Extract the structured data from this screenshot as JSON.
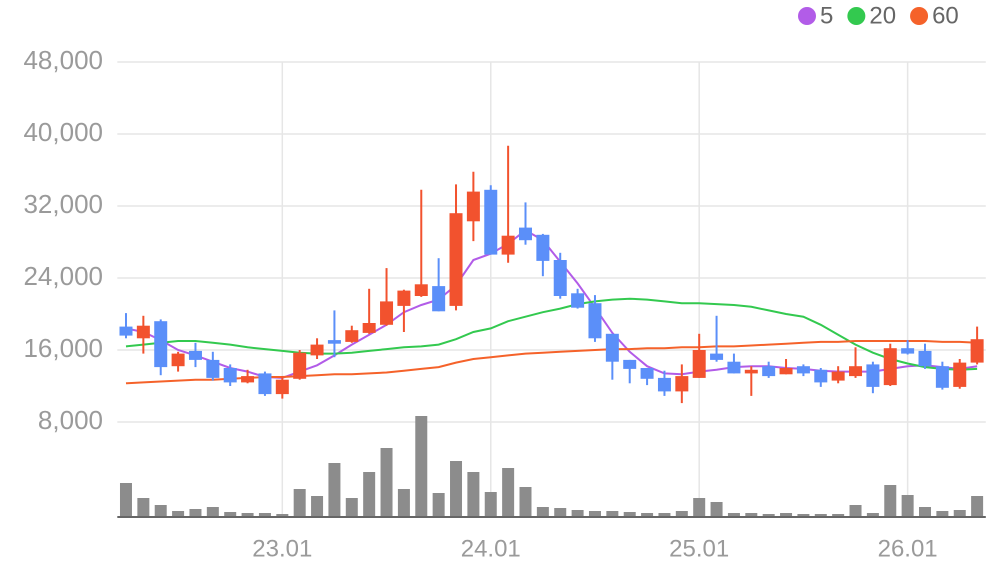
{
  "chart_data": {
    "type": "candlestick",
    "categories": [
      null,
      null,
      null,
      null,
      null,
      null,
      null,
      null,
      null,
      "23.01",
      null,
      null,
      null,
      null,
      null,
      null,
      null,
      null,
      null,
      null,
      null,
      "24.01",
      null,
      null,
      null,
      null,
      null,
      null,
      null,
      null,
      null,
      null,
      null,
      "25.01",
      null,
      null,
      null,
      null,
      null,
      null,
      null,
      null,
      null,
      null,
      null,
      "26.01",
      null,
      null,
      null,
      null
    ],
    "open": [
      18600,
      17300,
      19200,
      14200,
      15900,
      14900,
      14000,
      12400,
      13400,
      11100,
      12800,
      15400,
      17100,
      16900,
      17900,
      18800,
      20900,
      22000,
      23100,
      20900,
      30300,
      33800,
      26600,
      29600,
      28800,
      26000,
      22300,
      21200,
      17800,
      14900,
      14000,
      12900,
      11400,
      12900,
      15600,
      14700,
      13400,
      14200,
      13300,
      14200,
      13800,
      12600,
      13100,
      14400,
      12100,
      16200,
      15900,
      14200,
      11900,
      14600
    ],
    "high": [
      20100,
      19800,
      19400,
      15800,
      16800,
      15800,
      14400,
      13800,
      13600,
      13100,
      16000,
      17300,
      20400,
      18700,
      22800,
      25100,
      22700,
      33800,
      26200,
      34400,
      35800,
      34300,
      38700,
      32400,
      28900,
      26800,
      22800,
      22100,
      17800,
      14900,
      14000,
      13700,
      14400,
      17800,
      19800,
      15600,
      14200,
      14700,
      15000,
      14400,
      14000,
      14200,
      16300,
      14700,
      16700,
      17100,
      16700,
      14700,
      15000,
      18600
    ],
    "low": [
      17300,
      15600,
      13200,
      13600,
      14100,
      12600,
      12000,
      12300,
      10900,
      10600,
      12700,
      15000,
      15200,
      16800,
      17800,
      18700,
      18000,
      21900,
      20300,
      20400,
      28100,
      26600,
      25700,
      27700,
      24200,
      21700,
      20600,
      16900,
      12700,
      12300,
      12100,
      10900,
      10100,
      12900,
      14700,
      13400,
      10900,
      12900,
      13300,
      13100,
      11900,
      12300,
      12900,
      11200,
      12000,
      15500,
      13900,
      11600,
      11700,
      14400
    ],
    "close": [
      17600,
      18700,
      14100,
      15600,
      14900,
      12900,
      12400,
      13100,
      11100,
      12700,
      15700,
      16600,
      16700,
      18200,
      19000,
      21400,
      22600,
      23300,
      20300,
      31200,
      33600,
      26600,
      28700,
      28200,
      25900,
      22000,
      20700,
      17300,
      14700,
      13900,
      12800,
      11400,
      13100,
      16000,
      14900,
      13400,
      13800,
      13100,
      14000,
      13400,
      12400,
      13600,
      14200,
      11900,
      16200,
      15600,
      14200,
      11800,
      14600,
      17200
    ],
    "up_color": "#f2522e",
    "down_color": "#5b8ff9",
    "series": [
      {
        "name": "5",
        "color": "#b25ce8",
        "values": [
          18400,
          18000,
          17100,
          16000,
          15400,
          14700,
          14000,
          13600,
          13000,
          12900,
          13600,
          14300,
          15400,
          16600,
          17700,
          18800,
          20200,
          21000,
          21600,
          23200,
          26000,
          26700,
          27800,
          29300,
          28200,
          25800,
          23400,
          20700,
          17900,
          15800,
          14200,
          13400,
          13300,
          13600,
          13800,
          14100,
          14200,
          14200,
          14000,
          13900,
          13700,
          13600,
          13600,
          13600,
          13900,
          14200,
          14300,
          14100,
          13900,
          14200
        ]
      },
      {
        "name": "20",
        "color": "#33c94f",
        "values": [
          16400,
          16600,
          16800,
          17000,
          17000,
          16800,
          16600,
          16300,
          16100,
          15900,
          15700,
          15600,
          15600,
          15700,
          15900,
          16100,
          16300,
          16400,
          16600,
          17200,
          18000,
          18400,
          19200,
          19700,
          20200,
          20600,
          21100,
          21400,
          21600,
          21700,
          21600,
          21400,
          21200,
          21200,
          21100,
          21000,
          20800,
          20400,
          20000,
          19700,
          18800,
          17700,
          16600,
          15700,
          15000,
          14500,
          14100,
          13900,
          13800,
          13900
        ]
      },
      {
        "name": "60",
        "color": "#f5622a",
        "values": [
          12300,
          12400,
          12500,
          12600,
          12700,
          12700,
          12800,
          12900,
          13000,
          13000,
          13100,
          13200,
          13300,
          13300,
          13400,
          13500,
          13700,
          13900,
          14100,
          14600,
          15000,
          15200,
          15400,
          15600,
          15700,
          15800,
          15900,
          16000,
          16100,
          16100,
          16200,
          16200,
          16300,
          16300,
          16400,
          16400,
          16500,
          16600,
          16700,
          16800,
          16900,
          16900,
          17000,
          17000,
          17000,
          17000,
          17000,
          16900,
          16900,
          16800
        ]
      }
    ],
    "volume": [
      34,
      19,
      12,
      6,
      8,
      10,
      5,
      4,
      4,
      3,
      28,
      21,
      54,
      19,
      45,
      69,
      28,
      101,
      24,
      56,
      45,
      25,
      49,
      30,
      10,
      9,
      7,
      6,
      6,
      5,
      4,
      4,
      6,
      19,
      15,
      4,
      4,
      3,
      4,
      3,
      3,
      3,
      12,
      4,
      32,
      22,
      10,
      6,
      7,
      21
    ],
    "volume_color": "#8c8c8c",
    "ylim": [
      0,
      50000
    ],
    "yticks": [
      {
        "value": 8000,
        "label": "8,000"
      },
      {
        "value": 16000,
        "label": "16,000"
      },
      {
        "value": 24000,
        "label": "24,000"
      },
      {
        "value": 32000,
        "label": "32,000"
      },
      {
        "value": 40000,
        "label": "40,000"
      },
      {
        "value": 48000,
        "label": "48,000"
      }
    ],
    "grid": true
  }
}
